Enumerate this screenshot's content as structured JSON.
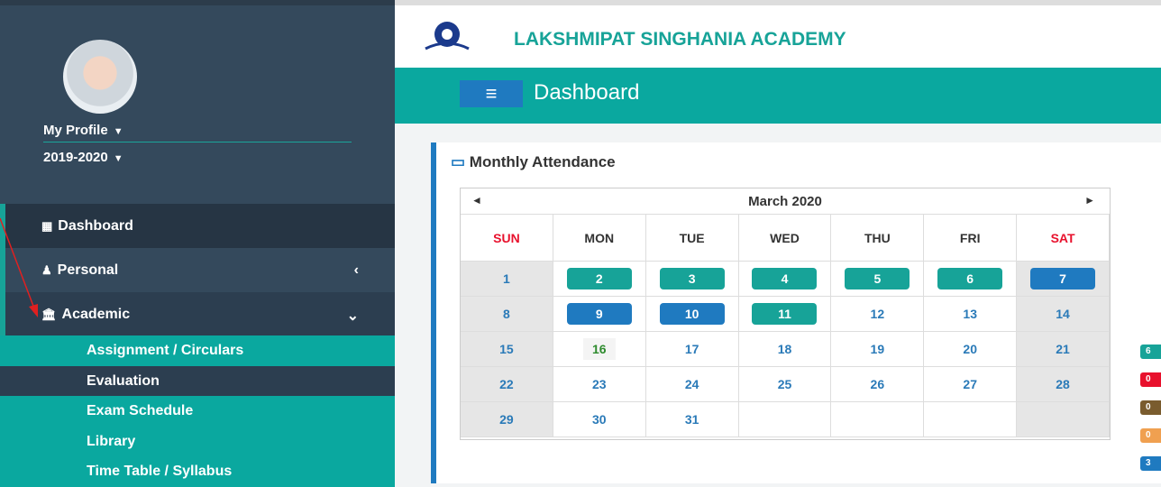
{
  "sidebar": {
    "profile": "My Profile",
    "session": "2019-2020",
    "menu": [
      {
        "label": "Dashboard"
      },
      {
        "label": "Personal"
      },
      {
        "label": "Academic"
      }
    ],
    "submenu": [
      "Assignment / Circulars",
      "Evaluation",
      "Exam Schedule",
      "Library",
      "Time Table / Syllabus"
    ]
  },
  "header": {
    "school": "LAKSHMIPAT SINGHANIA ACADEMY",
    "page_title": "Dashboard"
  },
  "attendance": {
    "title": "Monthly Attendance",
    "month": "March 2020",
    "weekdays": [
      "SUN",
      "MON",
      "TUE",
      "WED",
      "THU",
      "FRI",
      "SAT"
    ],
    "weeks": [
      [
        {
          "day": 1
        },
        {
          "day": 2,
          "color": "#17a398"
        },
        {
          "day": 3,
          "color": "#17a398"
        },
        {
          "day": 4,
          "color": "#17a398"
        },
        {
          "day": 5,
          "color": "#17a398"
        },
        {
          "day": 6,
          "color": "#17a398"
        },
        {
          "day": 7,
          "color": "#1f7ac0"
        }
      ],
      [
        {
          "day": 8
        },
        {
          "day": 9,
          "color": "#1f7ac0"
        },
        {
          "day": 10,
          "color": "#1f7ac0"
        },
        {
          "day": 11,
          "color": "#17a398"
        },
        {
          "day": 12
        },
        {
          "day": 13
        },
        {
          "day": 14
        }
      ],
      [
        {
          "day": 15
        },
        {
          "day": 16,
          "text_color": "#2e8b2e"
        },
        {
          "day": 17
        },
        {
          "day": 18
        },
        {
          "day": 19
        },
        {
          "day": 20
        },
        {
          "day": 21
        }
      ],
      [
        {
          "day": 22
        },
        {
          "day": 23
        },
        {
          "day": 24
        },
        {
          "day": 25
        },
        {
          "day": 26
        },
        {
          "day": 27
        },
        {
          "day": 28
        }
      ],
      [
        {
          "day": 29
        },
        {
          "day": 30
        },
        {
          "day": 31
        },
        null,
        null,
        null,
        null
      ]
    ]
  },
  "legend": [
    {
      "label": "6",
      "color": "#17a398"
    },
    {
      "label": "0",
      "color": "#e8112d"
    },
    {
      "label": "0",
      "color": "#7a5c2e"
    },
    {
      "label": "0",
      "color": "#f0a050"
    },
    {
      "label": "3",
      "color": "#1f7ac0"
    }
  ]
}
